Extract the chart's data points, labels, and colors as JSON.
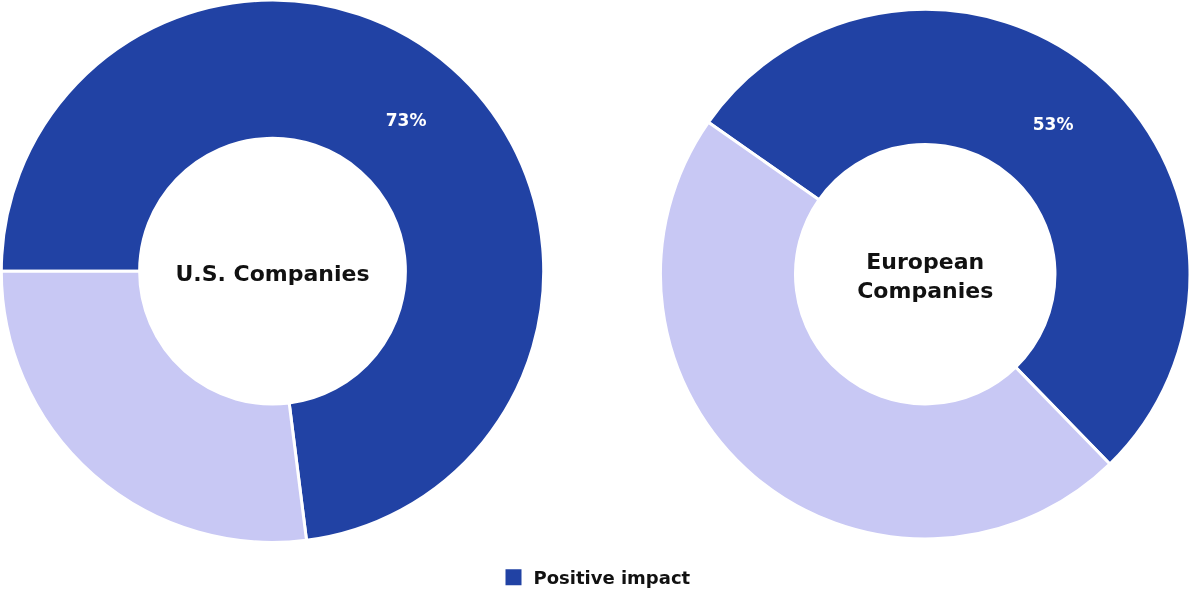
{
  "chart_data": [
    {
      "type": "donut",
      "title": "U.S. Companies",
      "categories": [
        "Positive impact",
        null
      ],
      "values": [
        73,
        27
      ],
      "colors": [
        "#2142a4",
        "#c8c8f4"
      ],
      "value_labels": [
        "73%",
        null
      ],
      "legend": "bottom"
    },
    {
      "type": "donut",
      "title": "European\nCompanies",
      "categories": [
        null,
        null
      ],
      "values": [
        53,
        47
      ],
      "colors": [
        "#2142a4",
        "#c8c8f4"
      ],
      "value_labels": [
        "53%",
        null
      ]
    }
  ]
}
